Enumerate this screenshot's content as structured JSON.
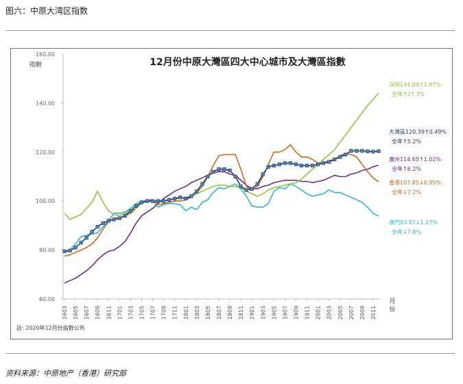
{
  "figure_caption": "图六：中原大湾区指数",
  "source_note": "资料来源：中原地产（香港）研究部",
  "chart_data": {
    "type": "line",
    "title": "12月份中原大灣區四大中心城市及大灣區指數",
    "ylabel": "指數",
    "xlabel": "月份",
    "note": "註: 2020年12月份指數公布",
    "ylim": [
      60,
      160
    ],
    "yticks": [
      "60.00",
      "80.00",
      "100.00",
      "120.00",
      "140.00",
      "160.00"
    ],
    "x": [
      1603,
      1604,
      1605,
      1606,
      1607,
      1608,
      1609,
      1610,
      1611,
      1612,
      1701,
      1702,
      1703,
      1704,
      1705,
      1706,
      1707,
      1708,
      1709,
      1710,
      1711,
      1712,
      1801,
      1802,
      1803,
      1804,
      1805,
      1806,
      1807,
      1808,
      1809,
      1810,
      1811,
      1812,
      1901,
      1902,
      1903,
      1904,
      1905,
      1906,
      1907,
      1908,
      1909,
      1910,
      1911,
      1912,
      2001,
      2002,
      2003,
      2004,
      2005,
      2006,
      2007,
      2008,
      2009,
      2010,
      2011,
      2012
    ],
    "xtick_labels": [
      "1603",
      "1605",
      "1607",
      "1609",
      "1611",
      "1701",
      "1703",
      "1705",
      "1707",
      "1709",
      "1711",
      "1801",
      "1803",
      "1805",
      "1807",
      "1809",
      "1811",
      "1901",
      "1903",
      "1905",
      "1907",
      "1909",
      "1911",
      "2001",
      "2003",
      "2005",
      "2007",
      "2009",
      "2011"
    ],
    "grid": false,
    "legend": "right-side end labels",
    "series": [
      {
        "name": "深圳",
        "color": "#8dc63f",
        "marker": false,
        "values": [
          95,
          92.5,
          93.5,
          94.5,
          97,
          99.5,
          104,
          99.5,
          96,
          94.5,
          94,
          95,
          96,
          97,
          99,
          100,
          100,
          99.5,
          100,
          100.5,
          101,
          101,
          101.5,
          102,
          103,
          104,
          105,
          106,
          106.5,
          106.5,
          106,
          106,
          105.5,
          104,
          103,
          102,
          103,
          104.5,
          105.5,
          106,
          106.5,
          107,
          107.5,
          109,
          111,
          113,
          115,
          117,
          119,
          121,
          124,
          127,
          130,
          133,
          136,
          139,
          141.5,
          144.09
        ],
        "label_lines": [
          "深圳144.09↑1.87%",
          "全年↑27.3%"
        ]
      },
      {
        "name": "大灣區",
        "color": "#1f3864",
        "marker": true,
        "values": [
          79.5,
          79.8,
          81,
          83,
          85,
          87.5,
          89.5,
          91,
          92,
          92.5,
          93,
          94,
          96,
          98,
          99.5,
          100,
          100,
          100,
          100,
          100.5,
          101,
          101.5,
          101,
          102,
          104,
          107,
          110,
          112,
          113,
          113,
          112.5,
          110,
          106,
          104.5,
          105,
          107,
          111,
          114,
          114.5,
          115,
          115.5,
          115.5,
          115,
          114.5,
          114.5,
          114.5,
          115,
          115.5,
          116,
          117,
          118,
          119,
          120.5,
          120.5,
          120.5,
          120.3,
          120.2,
          120.39
        ],
        "label_lines": [
          "大灣區120.39↑0.49%",
          "全年↑5.2%"
        ]
      },
      {
        "name": "廣州",
        "color": "#6b2a8c",
        "marker": false,
        "values": [
          66.5,
          67.5,
          68.5,
          70,
          71.5,
          73.5,
          76,
          78,
          79.5,
          80,
          81.5,
          83.5,
          87,
          91,
          94,
          95.5,
          97,
          99,
          101,
          102.5,
          104,
          105,
          106,
          107.5,
          108.5,
          109.5,
          110.5,
          111.5,
          112,
          112,
          111,
          110.5,
          108.5,
          106.5,
          105,
          105,
          106,
          106.5,
          107.5,
          108,
          108.5,
          108.5,
          108.5,
          108,
          108,
          107.5,
          108,
          108.5,
          109.5,
          110.5,
          110,
          110,
          111,
          111.5,
          112.5,
          113,
          114,
          114.65
        ],
        "label_lines": [
          "廣州114.65↑1.02%",
          "全年↑6.2%"
        ]
      },
      {
        "name": "香港",
        "color": "#c96b1a",
        "marker": false,
        "values": [
          77.5,
          78,
          79,
          80,
          81,
          82.5,
          85,
          88.5,
          91.5,
          93,
          93,
          94,
          95,
          97,
          99.5,
          100.5,
          100.5,
          98.5,
          99,
          99.5,
          100,
          100,
          100.5,
          101.5,
          103.5,
          106,
          110,
          114.5,
          118.5,
          119,
          119,
          119,
          113,
          106,
          104.5,
          106,
          110,
          115,
          120,
          120,
          121,
          123,
          120,
          118,
          118,
          117,
          115.5,
          115.5,
          116.5,
          117,
          118.5,
          119.5,
          119,
          118,
          115,
          112,
          109.5,
          107.85
        ],
        "label_lines": [
          "香港107.85↓0.95%",
          "全年↓7.2%"
        ]
      },
      {
        "name": "澳門",
        "color": "#2eb4d6",
        "marker": false,
        "values": [
          79,
          80,
          82.5,
          85.5,
          86,
          86.5,
          87,
          89.5,
          92,
          95,
          95,
          95.5,
          97,
          99,
          100,
          100,
          100,
          97.5,
          98.5,
          99,
          99,
          98.5,
          96,
          97.5,
          96.5,
          99.5,
          100.5,
          103.5,
          105.5,
          105,
          106,
          107,
          105,
          102,
          98,
          97.5,
          97.5,
          99,
          104,
          105.5,
          105,
          107,
          106,
          104.5,
          103,
          102,
          102.5,
          103,
          104.5,
          103.5,
          103.5,
          102.5,
          101.5,
          100.5,
          99.5,
          97.5,
          95,
          93.87
        ],
        "label_lines": [
          "澳門93.87↓1.27%",
          "全年↓7.8%"
        ]
      }
    ]
  }
}
